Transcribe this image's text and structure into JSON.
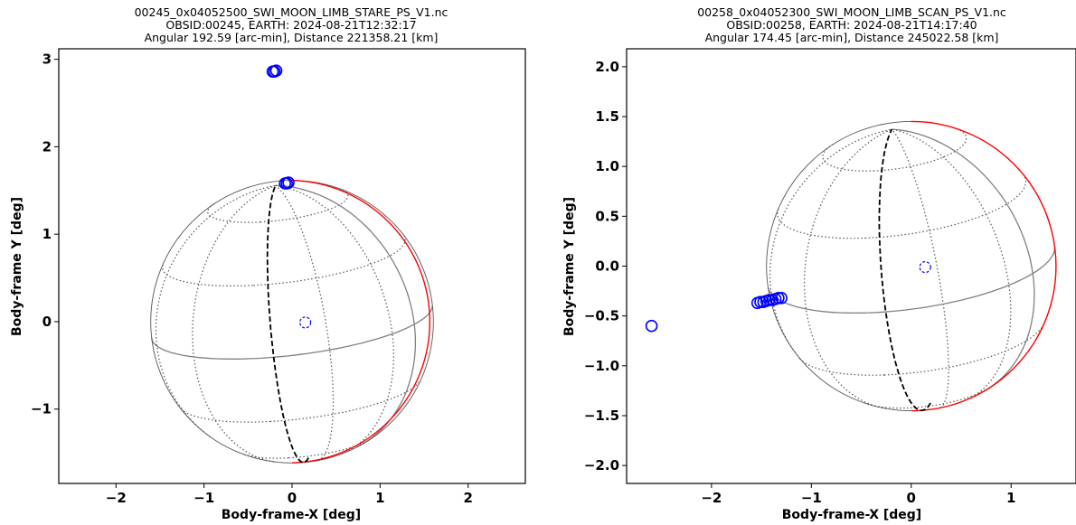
{
  "chart_data": [
    {
      "type": "scatter",
      "title_lines": [
        "00245_0x04052500_SWI_MOON_LIMB_STARE_PS_V1.nc",
        "OBSID:00245, EARTH: 2024-08-21T12:32:17",
        "Angular 192.59 [arc-min], Distance 221358.21 [km]"
      ],
      "xlabel": "Body-frame-X [deg]",
      "ylabel": "Body-frame Y [deg]",
      "xlim": [
        -2.65,
        2.65
      ],
      "ylim": [
        -1.85,
        3.12
      ],
      "xticks": [
        -2,
        -1,
        0,
        1,
        2
      ],
      "xtick_labels": [
        "−2",
        "−1",
        "0",
        "1",
        "2"
      ],
      "yticks": [
        -1,
        0,
        1,
        2,
        3
      ],
      "ytick_labels": [
        "−1",
        "0",
        "1",
        "2",
        "3"
      ],
      "moon": {
        "center": [
          0.0,
          0.0
        ],
        "radius": 1.605,
        "lit_limb_arc_deg": [
          -90,
          90
        ]
      },
      "boresight": {
        "x": 0.15,
        "y": -0.01
      },
      "observations": [
        {
          "x": -0.22,
          "y": 2.86
        },
        {
          "x": -0.2,
          "y": 2.86
        },
        {
          "x": -0.18,
          "y": 2.87
        },
        {
          "x": -0.08,
          "y": 1.58
        },
        {
          "x": -0.06,
          "y": 1.58
        },
        {
          "x": -0.04,
          "y": 1.59
        }
      ],
      "colors": {
        "limb_lit": "#ff0000",
        "limb": "#555555",
        "grid": "#555555",
        "equator": "#808080",
        "terminator": "#000000",
        "obs": "#0000ff"
      }
    },
    {
      "type": "scatter",
      "title_lines": [
        "00258_0x04052300_SWI_MOON_LIMB_SCAN_PS_V1.nc",
        "OBSID:00258, EARTH: 2024-08-21T14:17:40",
        "Angular 174.45 [arc-min], Distance 245022.58 [km]"
      ],
      "xlabel": "Body-frame-X [deg]",
      "ylabel": "Body-frame Y [deg]",
      "xlim": [
        -2.85,
        1.65
      ],
      "ylim": [
        -2.18,
        2.18
      ],
      "xticks": [
        -2,
        -1,
        0,
        1
      ],
      "xtick_labels": [
        "−2",
        "−1",
        "0",
        "1"
      ],
      "yticks": [
        -2.0,
        -1.5,
        -1.0,
        -0.5,
        0.0,
        0.5,
        1.0,
        1.5,
        2.0
      ],
      "ytick_labels": [
        "−2.0",
        "−1.5",
        "−1.0",
        "−0.5",
        "0.0",
        "0.5",
        "1.0",
        "1.5",
        "2.0"
      ],
      "moon": {
        "center": [
          0.0,
          0.0
        ],
        "radius": 1.45,
        "lit_limb_arc_deg": [
          -90,
          90
        ]
      },
      "boresight": {
        "x": 0.14,
        "y": -0.01
      },
      "observations": [
        {
          "x": -2.6,
          "y": -0.6
        },
        {
          "x": -1.54,
          "y": -0.37
        },
        {
          "x": -1.51,
          "y": -0.36
        },
        {
          "x": -1.48,
          "y": -0.36
        },
        {
          "x": -1.45,
          "y": -0.35
        },
        {
          "x": -1.42,
          "y": -0.34
        },
        {
          "x": -1.39,
          "y": -0.34
        },
        {
          "x": -1.36,
          "y": -0.33
        },
        {
          "x": -1.33,
          "y": -0.32
        },
        {
          "x": -1.3,
          "y": -0.32
        }
      ],
      "colors": {
        "limb_lit": "#ff0000",
        "limb": "#555555",
        "grid": "#555555",
        "equator": "#808080",
        "terminator": "#000000",
        "obs": "#0000ff"
      }
    }
  ]
}
